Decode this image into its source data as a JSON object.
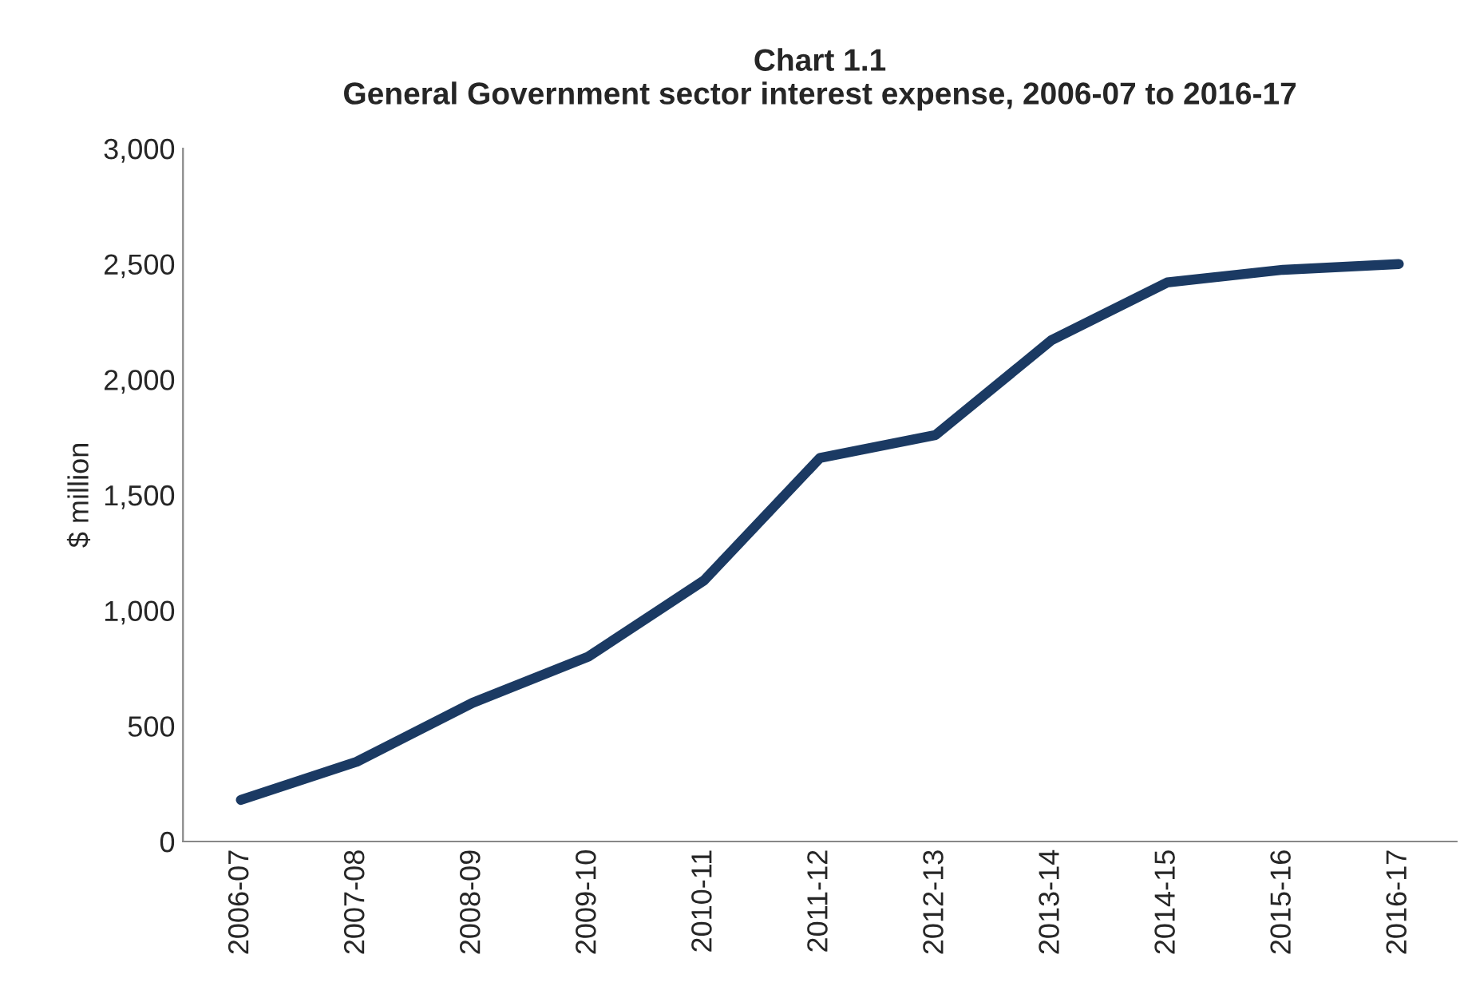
{
  "chart_data": {
    "type": "line",
    "title": "Chart 1.1\nGeneral Government sector interest expense, 2006-07 to 2016-17",
    "categories": [
      "2006-07",
      "2007-08",
      "2008-09",
      "2009-10",
      "2010-11",
      "2011-12",
      "2012-13",
      "2013-14",
      "2014-15",
      "2015-16",
      "2016-17"
    ],
    "series": [
      {
        "color": "#1b3a63",
        "values": [
          180,
          345,
          600,
          800,
          1130,
          1660,
          1760,
          2170,
          2420,
          2475,
          2500
        ]
      }
    ],
    "ylabel": "$ million",
    "ylim": [
      0,
      3000
    ],
    "yticks": [
      {
        "value": 0,
        "label": "0"
      },
      {
        "value": 500,
        "label": "500"
      },
      {
        "value": 1000,
        "label": "1,000"
      },
      {
        "value": 1500,
        "label": "1,500"
      },
      {
        "value": 2000,
        "label": "2,000"
      },
      {
        "value": 2500,
        "label": "2,500"
      },
      {
        "value": 3000,
        "label": "3,000"
      }
    ],
    "grid": false,
    "legend": false,
    "marker": "none",
    "line_style": "solid"
  }
}
